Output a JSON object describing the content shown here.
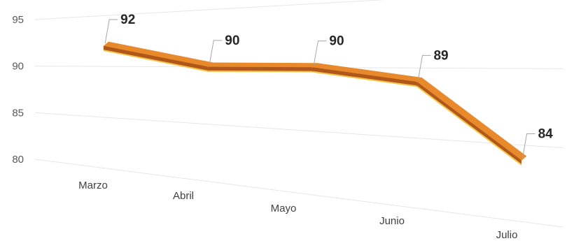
{
  "chart_data": {
    "type": "line",
    "style": "3d-ribbon",
    "categories": [
      "Marzo",
      "Abril",
      "Mayo",
      "Junio",
      "Julio"
    ],
    "series": [
      {
        "values": [
          92,
          90,
          90,
          89,
          84
        ]
      }
    ],
    "data_labels": [
      "92",
      "90",
      "90",
      "89",
      "84"
    ],
    "y_ticks": [
      "95",
      "90",
      "85",
      "80"
    ],
    "ylim": [
      80,
      95
    ],
    "title": "",
    "xlabel": "",
    "ylabel": "",
    "grid": true,
    "legend": "none",
    "colors": {
      "ribbon_top": "#e8892c",
      "ribbon_side": "#b0581a",
      "ribbon_edge": "#f2c14a"
    }
  }
}
